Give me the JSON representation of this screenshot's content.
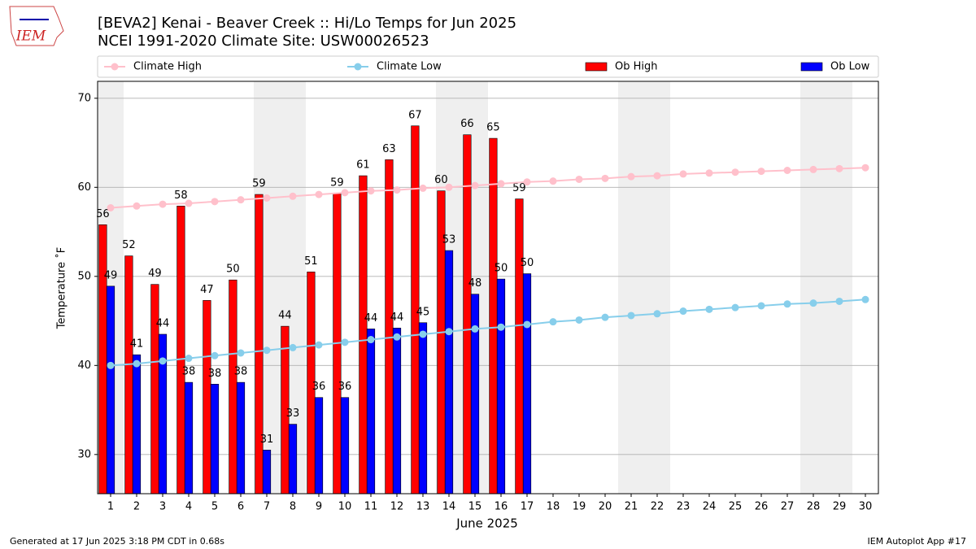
{
  "chart_data": {
    "type": "bar_line",
    "title": "[BEVA2] Kenai - Beaver Creek :: Hi/Lo Temps for Jun 2025",
    "subtitle": "NCEI 1991-2020 Climate Site: USW00026523",
    "x_label": "June 2025",
    "y_label": "Temperature ˚F",
    "logo_text": "IEM",
    "footer_left": "Generated at 17 Jun 2025 3:18 PM CDT in 0.68s",
    "footer_right": "IEM Autoplot App #17",
    "x": [
      1,
      2,
      3,
      4,
      5,
      6,
      7,
      8,
      9,
      10,
      11,
      12,
      13,
      14,
      15,
      16,
      17,
      18,
      19,
      20,
      21,
      22,
      23,
      24,
      25,
      26,
      27,
      28,
      29,
      30
    ],
    "xticks": [
      1,
      2,
      3,
      4,
      5,
      6,
      7,
      8,
      9,
      10,
      11,
      12,
      13,
      14,
      15,
      16,
      17,
      18,
      19,
      20,
      21,
      22,
      23,
      24,
      25,
      26,
      27,
      28,
      29,
      30
    ],
    "xlim": [
      0.5,
      30.5
    ],
    "ylim": [
      25.6,
      71.9
    ],
    "yticks": [
      30,
      40,
      50,
      60,
      70
    ],
    "grid": true,
    "shaded_days": [
      1,
      7,
      8,
      14,
      15,
      21,
      22,
      28,
      29
    ],
    "series": [
      {
        "name": "Climate High",
        "kind": "line",
        "color": "#ffc0cb",
        "values": [
          57.7,
          57.9,
          58.1,
          58.2,
          58.4,
          58.6,
          58.8,
          59.0,
          59.2,
          59.4,
          59.6,
          59.7,
          59.9,
          60.0,
          60.2,
          60.4,
          60.6,
          60.7,
          60.9,
          61.0,
          61.2,
          61.3,
          61.5,
          61.6,
          61.7,
          61.8,
          61.9,
          62.0,
          62.1,
          62.2
        ]
      },
      {
        "name": "Climate Low",
        "kind": "line",
        "color": "#87ceeb",
        "values": [
          40.0,
          40.2,
          40.5,
          40.8,
          41.1,
          41.4,
          41.7,
          42.0,
          42.3,
          42.6,
          42.9,
          43.2,
          43.5,
          43.8,
          44.1,
          44.3,
          44.6,
          44.9,
          45.1,
          45.4,
          45.6,
          45.8,
          46.1,
          46.3,
          46.5,
          46.7,
          46.9,
          47.0,
          47.2,
          47.4
        ]
      },
      {
        "name": "Ob High",
        "kind": "bar",
        "color": "#ff0000",
        "values": [
          55.8,
          52.3,
          49.1,
          57.9,
          47.3,
          49.6,
          59.2,
          44.4,
          50.5,
          59.3,
          61.3,
          63.1,
          66.9,
          59.6,
          65.9,
          65.5,
          58.7,
          null,
          null,
          null,
          null,
          null,
          null,
          null,
          null,
          null,
          null,
          null,
          null,
          null
        ],
        "value_labels": [
          "56",
          "52",
          "49",
          "58",
          "47",
          "50",
          "59",
          "44",
          "51",
          "59",
          "61",
          "63",
          "67",
          "60",
          "66",
          "65",
          "59",
          null,
          null,
          null,
          null,
          null,
          null,
          null,
          null,
          null,
          null,
          null,
          null,
          null
        ]
      },
      {
        "name": "Ob Low",
        "kind": "bar",
        "color": "#0000ff",
        "values": [
          48.9,
          41.2,
          43.5,
          38.1,
          37.9,
          38.1,
          30.5,
          33.4,
          36.4,
          36.4,
          44.1,
          44.2,
          44.8,
          52.9,
          48.0,
          49.7,
          50.3,
          null,
          null,
          null,
          null,
          null,
          null,
          null,
          null,
          null,
          null,
          null,
          null,
          null
        ],
        "value_labels": [
          "49",
          "41",
          "44",
          "38",
          "38",
          "38",
          "31",
          "33",
          "36",
          "36",
          "44",
          "44",
          "45",
          "53",
          "48",
          "50",
          "50",
          null,
          null,
          null,
          null,
          null,
          null,
          null,
          null,
          null,
          null,
          null,
          null,
          null
        ]
      }
    ]
  }
}
